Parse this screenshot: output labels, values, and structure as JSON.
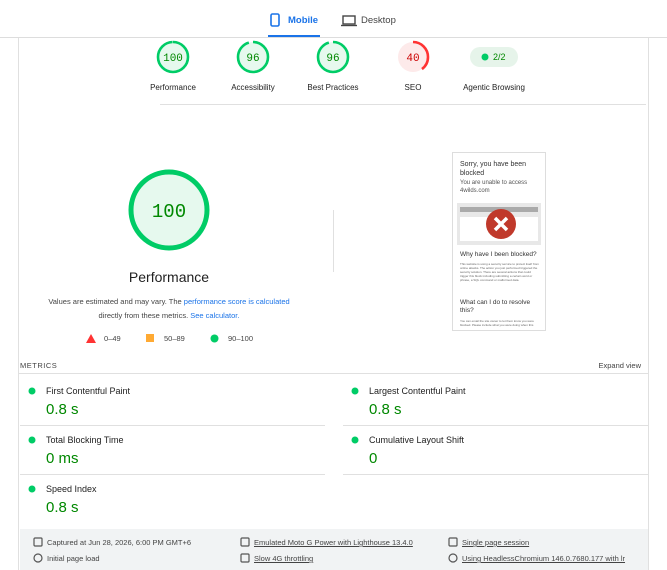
{
  "tabs": [
    {
      "label": "Mobile"
    },
    {
      "label": "Desktop"
    }
  ],
  "categories": [
    {
      "value": 100,
      "label": "Performance"
    },
    {
      "value": 96,
      "label": "Accessibility"
    },
    {
      "value": 96,
      "label": "Best Practices"
    },
    {
      "value": 40,
      "label": "SEO"
    }
  ],
  "agentic": {
    "badge": "2/2",
    "label": "Agentic Browsing"
  },
  "performance": {
    "score": 100,
    "title": "Performance",
    "note_1": "Values are estimated and may vary. The ",
    "note_link_1": "performance score is calculated",
    "note_2": " directly from these metrics. ",
    "note_link_2": "See calculator."
  },
  "legend": [
    "0–49",
    "50–89",
    "90–100"
  ],
  "screenshot": {
    "heading": "Sorry, you have been blocked",
    "subheading": "You are unable to access 4wilds.com",
    "why_title": "Why have I been blocked?",
    "why_text": "This website is using a security service to protect itself from online attacks. The action you just performed triggered the security solution. There are several actions that could trigger this block including submitting a certain word or phrase, a SQL command or malformed data.",
    "resolve_title": "What can I do to resolve this?",
    "resolve_text": "You can email the site owner to let them know you were blocked. Please include what you were doing when this"
  },
  "metrics": {
    "title": "METRICS",
    "expand": "Expand view",
    "items": [
      {
        "label": "First Contentful Paint",
        "value": "0.8 s"
      },
      {
        "label": "Largest Contentful Paint",
        "value": "0.8 s"
      },
      {
        "label": "Total Blocking Time",
        "value": "0 ms"
      },
      {
        "label": "Cumulative Layout Shift",
        "value": "0"
      },
      {
        "label": "Speed Index",
        "value": "0.8 s"
      }
    ]
  },
  "footer": [
    "Captured at Jun 28, 2026, 6:00 PM GMT+6",
    "Emulated Moto G Power with Lighthouse 13.4.0",
    "Single page session",
    "Initial page load",
    "Slow 4G throttling",
    "Using HeadlessChromium 146.0.7680.177 with lr"
  ]
}
